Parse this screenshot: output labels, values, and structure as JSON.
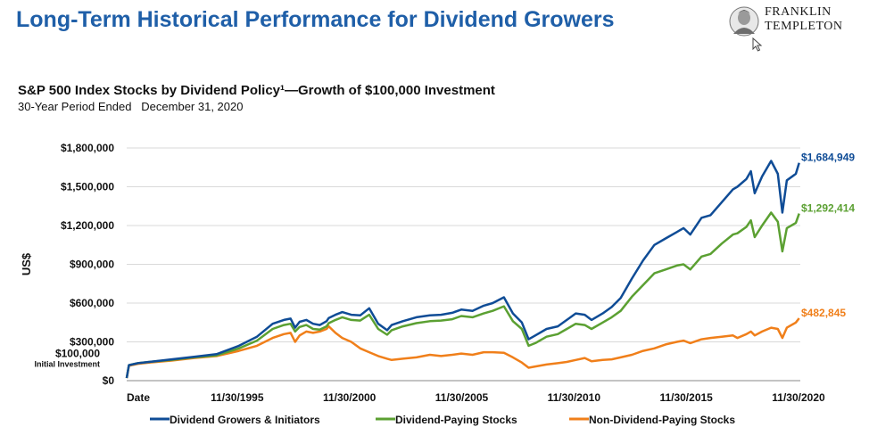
{
  "page": {
    "title": "Long-Term Historical Performance for Dividend Growers",
    "logo_line1": "FRANKLIN",
    "logo_line2": "TEMPLETON",
    "logo_icon": "franklin-portrait-icon",
    "cursor_icon": "mouse-pointer-icon"
  },
  "chart_data": {
    "type": "line",
    "title": "S&P 500 Index Stocks by Dividend Policy¹—Growth of $100,000 Investment",
    "subtitle": "30-Year Period Ended   December 31, 2020",
    "ylabel": "US$",
    "xlabel": "Date",
    "ylim": [
      0,
      1800000
    ],
    "xlim": [
      1991.0,
      2021.0
    ],
    "y_ticks": [
      {
        "value": 0,
        "label": "$0"
      },
      {
        "value": 300000,
        "label": "$300,000"
      },
      {
        "value": 600000,
        "label": "$600,000"
      },
      {
        "value": 900000,
        "label": "$900,000"
      },
      {
        "value": 1200000,
        "label": "$1,200,000"
      },
      {
        "value": 1500000,
        "label": "$1,500,000"
      },
      {
        "value": 1800000,
        "label": "$1,800,000"
      }
    ],
    "initial_marker": {
      "value": 100000,
      "label": "$100,000",
      "sublabel": "Initial Investment"
    },
    "x_ticks": [
      {
        "value": 1991.0,
        "label": "Date"
      },
      {
        "value": 1995.92,
        "label": "11/30/1995"
      },
      {
        "value": 2000.92,
        "label": "11/30/2000"
      },
      {
        "value": 2005.92,
        "label": "11/30/2005"
      },
      {
        "value": 2010.92,
        "label": "11/30/2010"
      },
      {
        "value": 2015.92,
        "label": "11/30/2015"
      },
      {
        "value": 2020.92,
        "label": "11/30/2020"
      }
    ],
    "grid": true,
    "legend_position": "bottom",
    "series": [
      {
        "name": "Dividend Growers & Initiators",
        "color": "#0f4c96",
        "end_label": "$1,684,949",
        "x": [
          1991.0,
          1991.1,
          1991.5,
          1992.0,
          1993.0,
          1994.0,
          1995.0,
          1996.0,
          1996.8,
          1997.5,
          1998.0,
          1998.3,
          1998.5,
          1998.7,
          1999.0,
          1999.3,
          1999.6,
          1999.9,
          2000.0,
          2000.3,
          2000.6,
          2001.0,
          2001.4,
          2001.8,
          2002.2,
          2002.6,
          2002.8,
          2003.3,
          2003.9,
          2004.5,
          2005.0,
          2005.5,
          2005.9,
          2006.4,
          2006.9,
          2007.3,
          2007.8,
          2008.2,
          2008.6,
          2008.9,
          2009.2,
          2009.7,
          2010.2,
          2010.6,
          2011.0,
          2011.4,
          2011.7,
          2012.2,
          2012.6,
          2013.0,
          2013.5,
          2014.0,
          2014.5,
          2015.0,
          2015.5,
          2015.8,
          2016.1,
          2016.6,
          2017.0,
          2017.5,
          2018.0,
          2018.2,
          2018.6,
          2018.8,
          2018.97,
          2019.3,
          2019.7,
          2020.0,
          2020.2,
          2020.4,
          2020.8,
          2020.95
        ],
        "values": [
          20000,
          120000,
          135000,
          145000,
          165000,
          185000,
          205000,
          270000,
          340000,
          440000,
          470000,
          480000,
          410000,
          455000,
          470000,
          440000,
          430000,
          460000,
          485000,
          510000,
          530000,
          510000,
          505000,
          560000,
          440000,
          390000,
          430000,
          460000,
          490000,
          505000,
          510000,
          525000,
          550000,
          540000,
          580000,
          600000,
          645000,
          520000,
          450000,
          320000,
          350000,
          400000,
          420000,
          470000,
          520000,
          510000,
          470000,
          520000,
          570000,
          640000,
          790000,
          930000,
          1050000,
          1100000,
          1150000,
          1180000,
          1130000,
          1260000,
          1280000,
          1380000,
          1480000,
          1500000,
          1560000,
          1620000,
          1450000,
          1580000,
          1700000,
          1600000,
          1300000,
          1550000,
          1600000,
          1684949
        ]
      },
      {
        "name": "Dividend-Paying Stocks",
        "color": "#5ba032",
        "end_label": "$1,292,414",
        "x": [
          1991.0,
          1991.1,
          1991.5,
          1992.0,
          1993.0,
          1994.0,
          1995.0,
          1996.0,
          1996.8,
          1997.5,
          1998.0,
          1998.3,
          1998.5,
          1998.7,
          1999.0,
          1999.3,
          1999.6,
          1999.9,
          2000.0,
          2000.3,
          2000.6,
          2001.0,
          2001.4,
          2001.8,
          2002.2,
          2002.6,
          2002.8,
          2003.3,
          2003.9,
          2004.5,
          2005.0,
          2005.5,
          2005.9,
          2006.4,
          2006.9,
          2007.3,
          2007.8,
          2008.2,
          2008.6,
          2008.9,
          2009.2,
          2009.7,
          2010.2,
          2010.6,
          2011.0,
          2011.4,
          2011.7,
          2012.2,
          2012.6,
          2013.0,
          2013.5,
          2014.0,
          2014.5,
          2015.0,
          2015.5,
          2015.8,
          2016.1,
          2016.6,
          2017.0,
          2017.5,
          2018.0,
          2018.2,
          2018.6,
          2018.8,
          2018.97,
          2019.3,
          2019.7,
          2020.0,
          2020.2,
          2020.4,
          2020.8,
          2020.95
        ],
        "values": [
          20000,
          120000,
          135000,
          145000,
          160000,
          180000,
          195000,
          250000,
          310000,
          400000,
          430000,
          440000,
          380000,
          415000,
          430000,
          400000,
          395000,
          420000,
          445000,
          470000,
          490000,
          470000,
          465000,
          510000,
          400000,
          355000,
          390000,
          420000,
          445000,
          460000,
          465000,
          475000,
          500000,
          490000,
          520000,
          540000,
          575000,
          460000,
          400000,
          270000,
          290000,
          340000,
          360000,
          400000,
          440000,
          430000,
          400000,
          450000,
          490000,
          540000,
          650000,
          740000,
          830000,
          860000,
          890000,
          900000,
          860000,
          960000,
          980000,
          1060000,
          1130000,
          1140000,
          1190000,
          1240000,
          1110000,
          1200000,
          1300000,
          1230000,
          1000000,
          1180000,
          1220000,
          1292414
        ]
      },
      {
        "name": "Non-Dividend-Paying Stocks",
        "color": "#f07f1a",
        "end_label": "$482,845",
        "x": [
          1991.0,
          1991.1,
          1991.5,
          1992.0,
          1993.0,
          1994.0,
          1995.0,
          1996.0,
          1996.8,
          1997.5,
          1998.0,
          1998.3,
          1998.5,
          1998.7,
          1999.0,
          1999.3,
          1999.6,
          1999.9,
          2000.0,
          2000.3,
          2000.6,
          2001.0,
          2001.4,
          2001.8,
          2002.2,
          2002.6,
          2002.8,
          2003.3,
          2003.9,
          2004.5,
          2005.0,
          2005.5,
          2005.9,
          2006.4,
          2006.9,
          2007.3,
          2007.8,
          2008.2,
          2008.6,
          2008.9,
          2009.2,
          2009.7,
          2010.2,
          2010.6,
          2011.0,
          2011.4,
          2011.7,
          2012.2,
          2012.6,
          2013.0,
          2013.5,
          2014.0,
          2014.5,
          2015.0,
          2015.5,
          2015.8,
          2016.1,
          2016.6,
          2017.0,
          2017.5,
          2018.0,
          2018.2,
          2018.6,
          2018.8,
          2018.97,
          2019.3,
          2019.7,
          2020.0,
          2020.2,
          2020.4,
          2020.8,
          2020.95
        ],
        "values": [
          20000,
          115000,
          130000,
          140000,
          155000,
          175000,
          190000,
          230000,
          270000,
          330000,
          360000,
          370000,
          300000,
          350000,
          380000,
          370000,
          380000,
          400000,
          420000,
          370000,
          330000,
          300000,
          250000,
          220000,
          190000,
          170000,
          160000,
          170000,
          180000,
          200000,
          190000,
          200000,
          210000,
          200000,
          220000,
          220000,
          215000,
          180000,
          140000,
          100000,
          110000,
          125000,
          135000,
          145000,
          160000,
          175000,
          150000,
          160000,
          165000,
          180000,
          200000,
          230000,
          250000,
          280000,
          300000,
          310000,
          290000,
          320000,
          330000,
          340000,
          350000,
          330000,
          360000,
          380000,
          350000,
          380000,
          410000,
          400000,
          330000,
          410000,
          450000,
          482845
        ]
      }
    ]
  }
}
